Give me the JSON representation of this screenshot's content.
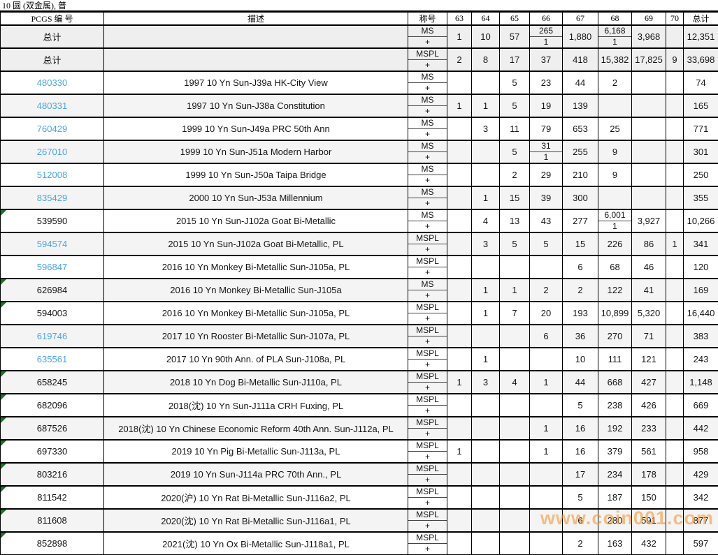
{
  "page_title": "10 圆 (双金属), 普",
  "watermark": "www.coin001.com",
  "colors": {
    "link_blue": "#4ba4e8",
    "marker_green": "#15761b",
    "watermark_orange": "#f59b3e",
    "row_alt_gray": "#f4f4f4",
    "total_row_gray": "#efefef",
    "border_black": "#000000"
  },
  "table": {
    "plus_label": "+",
    "headers": [
      "PCGS 编 号",
      "描述",
      "称号",
      "63",
      "64",
      "65",
      "66",
      "67",
      "68",
      "69",
      "70",
      "总计"
    ],
    "total_rows": [
      {
        "label": "总计",
        "desig": "MS",
        "grades": {
          "g63": "1",
          "g64": "10",
          "g65": "57",
          "g66": [
            "265",
            "1"
          ],
          "g67": "1,880",
          "g68": [
            "6,168",
            "1"
          ],
          "g69": "3,968",
          "total": "12,351"
        }
      },
      {
        "label": "总计",
        "desig": "MSPL",
        "grades": {
          "g63": "2",
          "g64": "8",
          "g65": "17",
          "g66": "37",
          "g67": "418",
          "g68": "15,382",
          "g69": "17,825",
          "g70": "9",
          "total": "33,698"
        }
      }
    ],
    "rows": [
      {
        "pcgs": "480330",
        "link": true,
        "marker": false,
        "desc": "1997 10 Yn Sun-J39a HK-City View",
        "desig": "MS",
        "grades": {
          "g65": "5",
          "g66": "23",
          "g67": "44",
          "g68": "2",
          "total": "74"
        }
      },
      {
        "pcgs": "480331",
        "link": true,
        "marker": false,
        "desc": "1997 10 Yn Sun-J38a Constitution",
        "desig": "MS",
        "grades": {
          "g63": "1",
          "g64": "1",
          "g65": "5",
          "g66": "19",
          "g67": "139",
          "total": "165"
        }
      },
      {
        "pcgs": "760429",
        "link": true,
        "marker": false,
        "desc": "1999 10 Yn Sun-J49a PRC 50th Ann",
        "desig": "MS",
        "grades": {
          "g64": "3",
          "g65": "11",
          "g66": "79",
          "g67": "653",
          "g68": "25",
          "total": "771"
        }
      },
      {
        "pcgs": "267010",
        "link": true,
        "marker": false,
        "desc": "1999 10 Yn Sun-J51a Modern Harbor",
        "desig": "MS",
        "grades": {
          "g65": "5",
          "g66": [
            "31",
            "1"
          ],
          "g67": "255",
          "g68": "9",
          "total": "301"
        }
      },
      {
        "pcgs": "512008",
        "link": true,
        "marker": false,
        "desc": "1999 10 Yn Sun-J50a Taipa Bridge",
        "desig": "MS",
        "grades": {
          "g65": "2",
          "g66": "29",
          "g67": "210",
          "g68": "9",
          "total": "250"
        }
      },
      {
        "pcgs": "835429",
        "link": true,
        "marker": false,
        "desc": "2000 10 Yn Sun-J53a Millennium",
        "desig": "MS",
        "grades": {
          "g64": "1",
          "g65": "15",
          "g66": "39",
          "g67": "300",
          "total": "355"
        }
      },
      {
        "pcgs": "539590",
        "link": false,
        "marker": true,
        "desc": "2015 10 Yn Sun-J102a Goat Bi-Metallic",
        "desig": "MS",
        "grades": {
          "g64": "4",
          "g65": "13",
          "g66": "43",
          "g67": "277",
          "g68": [
            "6,001",
            "1"
          ],
          "g69": "3,927",
          "total": "10,266"
        }
      },
      {
        "pcgs": "594574",
        "link": true,
        "marker": false,
        "desc": "2015 10 Yn Sun-J102a Goat Bi-Metallic, PL",
        "desig": "MSPL",
        "grades": {
          "g64": "3",
          "g65": "5",
          "g66": "5",
          "g67": "15",
          "g68": "226",
          "g69": "86",
          "g70": "1",
          "total": "341"
        }
      },
      {
        "pcgs": "596847",
        "link": true,
        "marker": false,
        "desc": "2016 10 Yn Monkey Bi-Metallic Sun-J105a, PL",
        "desig": "MSPL",
        "grades": {
          "g67": "6",
          "g68": "68",
          "g69": "46",
          "total": "120"
        }
      },
      {
        "pcgs": "626984",
        "link": false,
        "marker": true,
        "desc": "2016 10 Yn Monkey Bi-Metallic Sun-J105a",
        "desig": "MS",
        "grades": {
          "g64": "1",
          "g65": "1",
          "g66": "2",
          "g67": "2",
          "g68": "122",
          "g69": "41",
          "total": "169"
        }
      },
      {
        "pcgs": "594003",
        "link": false,
        "marker": true,
        "desc": "2016 10 Yn Monkey Bi-Metallic Sun-J105a, PL",
        "desig": "MSPL",
        "grades": {
          "g64": "1",
          "g65": "7",
          "g66": "20",
          "g67": "193",
          "g68": "10,899",
          "g69": "5,320",
          "total": "16,440"
        }
      },
      {
        "pcgs": "619746",
        "link": true,
        "marker": false,
        "desc": "2017 10 Yn Rooster Bi-Metallic Sun-J107a, PL",
        "desig": "MSPL",
        "grades": {
          "g66": "6",
          "g67": "36",
          "g68": "270",
          "g69": "71",
          "total": "383"
        }
      },
      {
        "pcgs": "635561",
        "link": true,
        "marker": false,
        "desc": "2017 10 Yn 90th Ann. of PLA Sun-J108a, PL",
        "desig": "MSPL",
        "grades": {
          "g64": "1",
          "g67": "10",
          "g68": "111",
          "g69": "121",
          "total": "243"
        }
      },
      {
        "pcgs": "658245",
        "link": false,
        "marker": true,
        "desc": "2018 10 Yn Dog Bi-Metallic Sun-J110a, PL",
        "desig": "MSPL",
        "grades": {
          "g63": "1",
          "g64": "3",
          "g65": "4",
          "g66": "1",
          "g67": "44",
          "g68": "668",
          "g69": "427",
          "total": "1,148"
        }
      },
      {
        "pcgs": "682096",
        "link": false,
        "marker": true,
        "desc": "2018(沈) 10 Yn Sun-J111a CRH Fuxing, PL",
        "desig": "MSPL",
        "grades": {
          "g67": "5",
          "g68": "238",
          "g69": "426",
          "total": "669"
        }
      },
      {
        "pcgs": "687526",
        "link": false,
        "marker": true,
        "desc": "2018(沈) 10 Yn Chinese Economic Reform 40th Ann. Sun-J112a, PL",
        "desig": "MSPL",
        "grades": {
          "g66": "1",
          "g67": "16",
          "g68": "192",
          "g69": "233",
          "total": "442"
        }
      },
      {
        "pcgs": "697330",
        "link": false,
        "marker": true,
        "desc": "2019 10 Yn Pig Bi-Metallic Sun-J113a, PL",
        "desig": "MSPL",
        "grades": {
          "g63": "1",
          "g66": "1",
          "g67": "16",
          "g68": "379",
          "g69": "561",
          "total": "958"
        }
      },
      {
        "pcgs": "803216",
        "link": false,
        "marker": true,
        "desc": "2019 10 Yn Sun-J114a PRC 70th Ann., PL",
        "desig": "MSPL",
        "grades": {
          "g67": "17",
          "g68": "234",
          "g69": "178",
          "total": "429"
        }
      },
      {
        "pcgs": "811542",
        "link": false,
        "marker": true,
        "desc": "2020(沪) 10 Yn Rat Bi-Metallic Sun-J116a2, PL",
        "desig": "MSPL",
        "grades": {
          "g67": "5",
          "g68": "187",
          "g69": "150",
          "total": "342"
        }
      },
      {
        "pcgs": "811608",
        "link": false,
        "marker": true,
        "desc": "2020(沈) 10 Yn Rat Bi-Metallic Sun-J116a1, PL",
        "desig": "MSPL",
        "grades": {
          "g67": "6",
          "g68": "280",
          "g69": "591",
          "total": "877"
        }
      },
      {
        "pcgs": "852898",
        "link": false,
        "marker": true,
        "desc": "2021(沈) 10 Yn Ox Bi-Metallic Sun-J118a1, PL",
        "desig": "MSPL",
        "grades": {
          "g67": "2",
          "g68": "163",
          "g69": "432",
          "total": "597"
        }
      }
    ]
  }
}
